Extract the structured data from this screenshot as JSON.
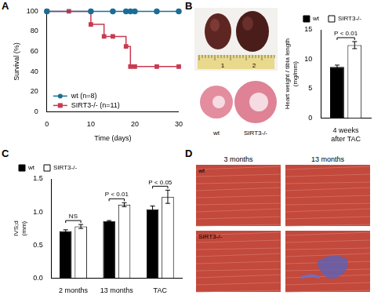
{
  "panel_labels": [
    "A",
    "B",
    "C",
    "D"
  ],
  "chart_data": [
    {
      "type": "line",
      "x_label": "Time (days)",
      "y_label": "Survival (%)",
      "xlim": [
        0,
        30
      ],
      "xticks": [
        0,
        10,
        20,
        30
      ],
      "ylim": [
        0,
        100
      ],
      "yticks": [
        0,
        20,
        40,
        60,
        80,
        100
      ],
      "grid": false,
      "legend": "lower left",
      "series": [
        {
          "name": "wt (n=8)",
          "color": "#1c6d96",
          "marker": "circle",
          "line_style": "steps",
          "x": [
            0,
            10,
            15,
            18,
            19,
            20,
            25,
            30
          ],
          "values": [
            100,
            100,
            100,
            100,
            100,
            100,
            100,
            100
          ]
        },
        {
          "name": "SIRT3-/- (n=11)",
          "color": "#c83a50",
          "marker": "square",
          "line_style": "steps",
          "x": [
            0,
            5,
            10,
            13,
            15,
            18,
            19,
            20,
            25,
            30
          ],
          "values": [
            100,
            100,
            87,
            75,
            75,
            65,
            45,
            45,
            45,
            45
          ]
        }
      ]
    },
    {
      "type": "bar",
      "y_label": "Heart weight / tibia length (mg/mm)",
      "categories": [
        "4 weeks after TAC"
      ],
      "ylim": [
        0,
        15
      ],
      "yticks": [
        0,
        5,
        10,
        15
      ],
      "grid": false,
      "legend": "upper right",
      "series": [
        {
          "name": "wt",
          "color": "#000000",
          "values": [
            8.7
          ],
          "errors": [
            0.3
          ]
        },
        {
          "name": "SIRT3-/-",
          "color": "#ffffff",
          "values": [
            12.4
          ],
          "errors": [
            0.6
          ]
        }
      ],
      "annotations": [
        {
          "text": "P < 0.01",
          "category": "4 weeks after TAC"
        }
      ]
    },
    {
      "type": "bar",
      "y_label": "IVS;d (mm)",
      "categories": [
        "2 months",
        "13 months",
        "TAC"
      ],
      "ylim": [
        0,
        1.5
      ],
      "yticks": [
        {
          "value": 0,
          "label": "0.0"
        },
        0.5,
        {
          "value": 1,
          "label": "1.0"
        },
        1.5
      ],
      "grid": false,
      "legend": "upper left",
      "series": [
        {
          "name": "wt",
          "color": "#000000",
          "values": [
            0.71,
            0.86,
            1.04
          ],
          "errors": [
            0.02,
            0.01,
            0.05
          ]
        },
        {
          "name": "SIRT3-/-",
          "color": "#ffffff",
          "values": [
            0.78,
            1.11,
            1.23
          ],
          "errors": [
            0.03,
            0.03,
            0.1
          ]
        }
      ],
      "annotations": [
        {
          "text": "NS",
          "category": "2 months"
        },
        {
          "text": "P < 0.01",
          "category": "13 months"
        },
        {
          "text": "P < 0.05",
          "category": "TAC"
        }
      ]
    }
  ],
  "images": {
    "heart_photos": {
      "ruler_labels": [
        "1",
        "2"
      ]
    },
    "heart_sections": {
      "labels": [
        "wt",
        "SIRT3-/-"
      ]
    },
    "histology": {
      "columns": [
        "3 months",
        "13 months"
      ],
      "rows": [
        "wt",
        "SIRT3-/-"
      ]
    }
  }
}
